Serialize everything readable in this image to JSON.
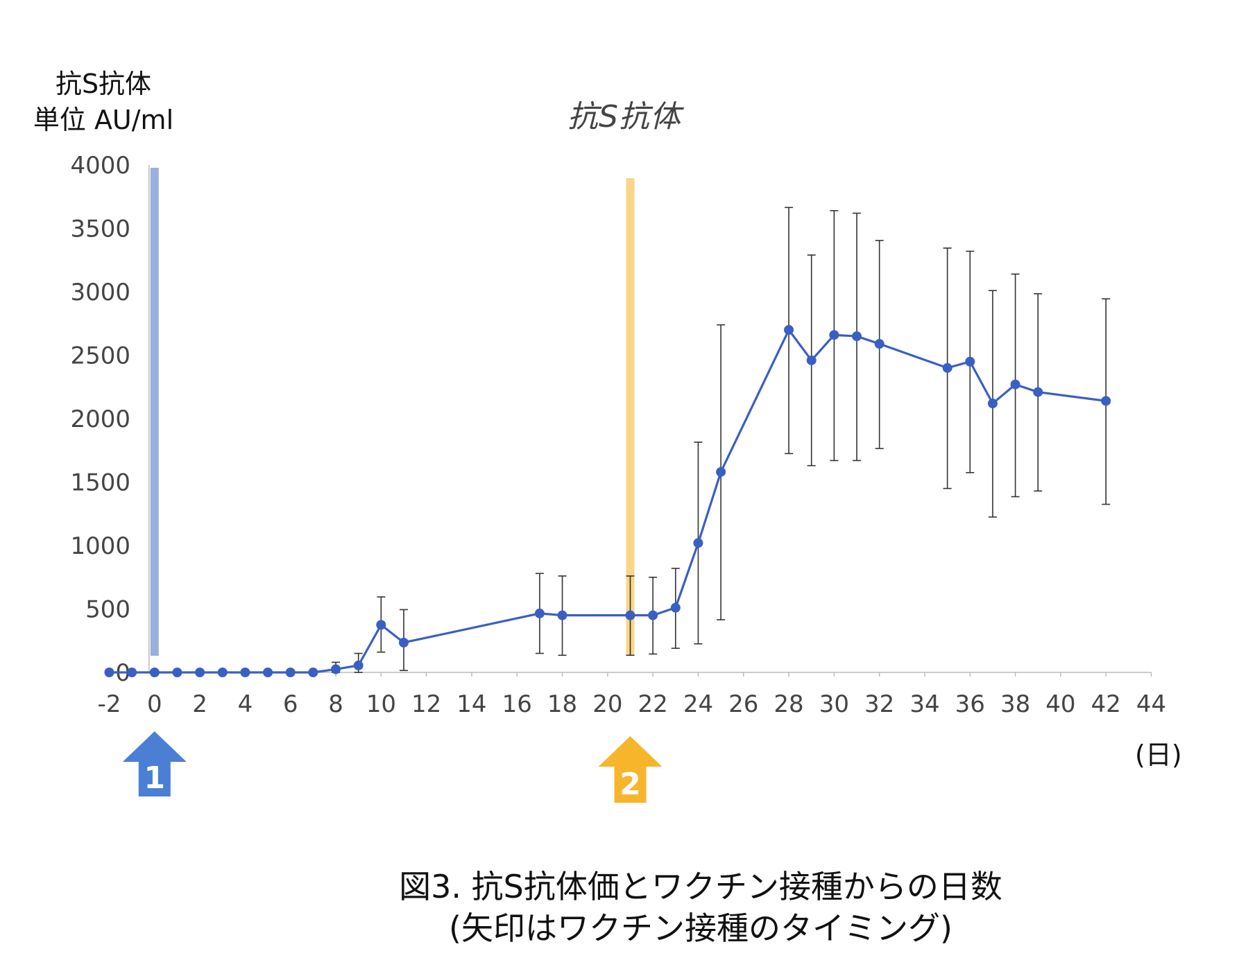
{
  "y_axis_title": [
    "抗S抗体",
    "単位 AU/ml"
  ],
  "x_unit": "(日)",
  "caption": [
    "図3. 抗S抗体価とワクチン接種からの日数",
    "(矢印はワクチン接種のタイミング)"
  ],
  "colors": {
    "series": "#3a5fc4",
    "error_bar": "#333333",
    "vaccination_1": "#4a7fd4",
    "vaccination_1_band": "#8ea7d9",
    "vaccination_2": "#f7b52c",
    "vaccination_2_band": "#f8d27a",
    "axis": "#bbbbbb"
  },
  "vaccinations": [
    {
      "label": "1",
      "day": 0
    },
    {
      "label": "2",
      "day": 21
    }
  ],
  "chart_data": {
    "type": "line",
    "title": "抗S抗体",
    "xlabel": "(日)",
    "ylabel": "抗S抗体 単位 AU/ml",
    "xlim": [
      -2,
      44
    ],
    "ylim": [
      0,
      4000
    ],
    "x_ticks": [
      -2,
      0,
      2,
      4,
      6,
      8,
      10,
      12,
      14,
      16,
      18,
      20,
      22,
      24,
      26,
      28,
      30,
      32,
      34,
      36,
      38,
      40,
      42,
      44
    ],
    "y_ticks": [
      0,
      500,
      1000,
      1500,
      2000,
      2500,
      3000,
      3500,
      4000
    ],
    "grid": false,
    "legend": "none",
    "series": [
      {
        "error_bars": true,
        "points": [
          {
            "x": -2,
            "y": 0
          },
          {
            "x": -1,
            "y": 0
          },
          {
            "x": 0,
            "y": 0
          },
          {
            "x": 1,
            "y": 0
          },
          {
            "x": 2,
            "y": 0
          },
          {
            "x": 3,
            "y": 0
          },
          {
            "x": 4,
            "y": 0
          },
          {
            "x": 5,
            "y": 0
          },
          {
            "x": 6,
            "y": 0
          },
          {
            "x": 7,
            "y": 0
          },
          {
            "x": 8,
            "y": 25,
            "low": 0,
            "high": 80
          },
          {
            "x": 9,
            "y": 55,
            "low": 0,
            "high": 150
          },
          {
            "x": 10,
            "y": 375,
            "low": 160,
            "high": 595
          },
          {
            "x": 11,
            "y": 235,
            "low": 15,
            "high": 495
          },
          {
            "x": 17,
            "y": 465,
            "low": 150,
            "high": 780
          },
          {
            "x": 18,
            "y": 450,
            "low": 135,
            "high": 760
          },
          {
            "x": 21,
            "y": 450,
            "low": 135,
            "high": 760
          },
          {
            "x": 22,
            "y": 450,
            "low": 145,
            "high": 750
          },
          {
            "x": 23,
            "y": 510,
            "low": 190,
            "high": 820
          },
          {
            "x": 24,
            "y": 1020,
            "low": 225,
            "high": 1815
          },
          {
            "x": 25,
            "y": 1580,
            "low": 415,
            "high": 2740
          },
          {
            "x": 28,
            "y": 2700,
            "low": 1725,
            "high": 3665
          },
          {
            "x": 29,
            "y": 2460,
            "low": 1630,
            "high": 3290
          },
          {
            "x": 30,
            "y": 2660,
            "low": 1670,
            "high": 3640
          },
          {
            "x": 31,
            "y": 2650,
            "low": 1670,
            "high": 3620
          },
          {
            "x": 32,
            "y": 2590,
            "low": 1765,
            "high": 3405
          },
          {
            "x": 35,
            "y": 2400,
            "low": 1450,
            "high": 3345
          },
          {
            "x": 36,
            "y": 2450,
            "low": 1575,
            "high": 3320
          },
          {
            "x": 37,
            "y": 2120,
            "low": 1225,
            "high": 3010
          },
          {
            "x": 38,
            "y": 2270,
            "low": 1385,
            "high": 3140
          },
          {
            "x": 39,
            "y": 2210,
            "low": 1430,
            "high": 2985
          },
          {
            "x": 42,
            "y": 2140,
            "low": 1325,
            "high": 2945
          }
        ]
      }
    ]
  }
}
